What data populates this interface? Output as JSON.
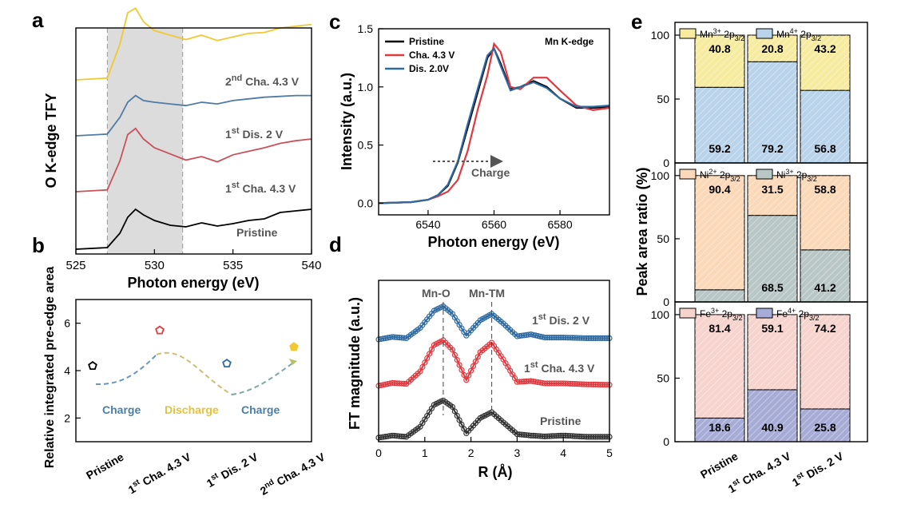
{
  "colors": {
    "pristine": "#000000",
    "cha": "#e0393f",
    "dis": "#2e6aa1",
    "cha2": "#f2c832",
    "blue_fill": "#b9d3ea",
    "yellow_fill": "#f7eba0",
    "orange_fill": "#fbd8b8",
    "gray_fill": "#b8c6c6",
    "pink_fill": "#f6d3cd",
    "purple_fill": "#a7acd6",
    "band": "#dcdcdc"
  },
  "panels": {
    "a": {
      "letter": "a",
      "ylabel": "O K-edge TFY",
      "xlabel": "Photon energy (eV)",
      "xticks": [
        "525",
        "530",
        "535",
        "540"
      ],
      "labels": {
        "cha2_pre": "2",
        "cha2_sup": "nd",
        "cha2_post": " Cha. 4.3 V",
        "dis_pre": "1",
        "dis_sup": "st",
        "dis_post": " Dis. 2 V",
        "cha_pre": "1",
        "cha_sup": "st",
        "cha_post": " Cha. 4.3 V",
        "pristine": "Pristine"
      }
    },
    "b": {
      "letter": "b",
      "ylabel": "Relative integrated pre-edge area",
      "yticks": [
        "2",
        "4",
        "6"
      ],
      "xlabels": [
        {
          "pre": "Pristine",
          "sup": "",
          "post": ""
        },
        {
          "pre": "1",
          "sup": "st",
          "post": " Cha. 4.3 V"
        },
        {
          "pre": "1",
          "sup": "st",
          "post": " Dis. 2 V"
        },
        {
          "pre": "2",
          "sup": "nd",
          "post": " Cha. 4.3 V"
        }
      ],
      "arrows": [
        "Charge",
        "Discharge",
        "Charge"
      ]
    },
    "c": {
      "letter": "c",
      "ylabel": "Intensity (a.u.)",
      "xlabel": "Photon energy (eV)",
      "yticks": [
        "0.0",
        "0.5",
        "1.0",
        "1.5"
      ],
      "xticks": [
        "6540",
        "6560",
        "6580"
      ],
      "legend": [
        "Pristine",
        "Cha. 4.3 V",
        "Dis. 2.0V"
      ],
      "annotation": "Mn K-edge",
      "arrow_label": "Charge"
    },
    "d": {
      "letter": "d",
      "ylabel": "FT magnitude (a.u.)",
      "xlabel": "R (Å)",
      "xticks": [
        "0",
        "1",
        "2",
        "3",
        "4",
        "5"
      ],
      "peak1": "Mn-O",
      "peak2": "Mn-TM",
      "labels": {
        "dis_pre": "1",
        "dis_sup": "st",
        "dis_post": " Dis. 2 V",
        "cha_pre": "1",
        "cha_sup": "st",
        "cha_post": " Cha. 4.3 V",
        "pristine": "Pristine"
      }
    },
    "e": {
      "letter": "e",
      "ylabel": "Peak area ratio (%)",
      "yticks": [
        "0",
        "50",
        "100"
      ],
      "xlabels": [
        {
          "pre": "Pristine",
          "sup": "",
          "post": ""
        },
        {
          "pre": "1",
          "sup": "st",
          "post": " Cha. 4.3 V"
        },
        {
          "pre": "1",
          "sup": "st",
          "post": " Dis. 2 V"
        }
      ],
      "legends": [
        [
          {
            "base": "Mn",
            "sup": "3+",
            "mid": " 2p",
            "sub": "3/2"
          },
          {
            "base": "Mn",
            "sup": "4+",
            "mid": " 2p",
            "sub": "3/2"
          }
        ],
        [
          {
            "base": "Ni",
            "sup": "2+",
            "mid": " 2p",
            "sub": "3/2"
          },
          {
            "base": "Ni",
            "sup": "3+",
            "mid": " 2p",
            "sub": "3/2"
          }
        ],
        [
          {
            "base": "Fe",
            "sup": "3+",
            "mid": " 2p",
            "sub": "3/2"
          },
          {
            "base": "Fe",
            "sup": "4+",
            "mid": " 2p",
            "sub": "3/2"
          }
        ]
      ]
    }
  },
  "chart_data": [
    {
      "panel": "a",
      "type": "line",
      "xlabel": "Photon energy (eV)",
      "ylabel": "O K-edge TFY",
      "xlim": [
        525,
        540
      ],
      "highlight_region": [
        527,
        531.8
      ],
      "series": [
        {
          "name": "Pristine",
          "x": [
            525,
            527,
            527.8,
            528.3,
            528.8,
            529.3,
            530,
            531,
            532,
            533,
            534,
            535,
            536,
            537,
            538,
            539,
            540
          ],
          "y": [
            0.0,
            0.02,
            0.2,
            0.4,
            0.5,
            0.43,
            0.36,
            0.3,
            0.28,
            0.33,
            0.29,
            0.32,
            0.36,
            0.38,
            0.46,
            0.48,
            0.5
          ]
        },
        {
          "name": "1st Cha. 4.3 V",
          "x": [
            525,
            527,
            527.8,
            528.3,
            528.8,
            529.3,
            530,
            531,
            532,
            533,
            534,
            535,
            536,
            537,
            538,
            539,
            540
          ],
          "y": [
            0.0,
            0.02,
            0.35,
            0.65,
            0.72,
            0.6,
            0.5,
            0.43,
            0.36,
            0.4,
            0.34,
            0.42,
            0.46,
            0.5,
            0.55,
            0.58,
            0.6
          ]
        },
        {
          "name": "1st Dis. 2 V",
          "x": [
            525,
            527,
            527.8,
            528.3,
            528.8,
            529.3,
            530,
            531,
            532,
            533,
            534,
            535,
            536,
            537,
            538,
            539,
            540
          ],
          "y": [
            0.0,
            0.02,
            0.22,
            0.4,
            0.48,
            0.42,
            0.4,
            0.38,
            0.36,
            0.4,
            0.38,
            0.42,
            0.44,
            0.46,
            0.47,
            0.48,
            0.48
          ]
        },
        {
          "name": "2nd Cha. 4.3 V",
          "x": [
            525,
            527,
            527.8,
            528.3,
            528.8,
            529.3,
            530,
            531,
            532,
            533,
            534,
            535,
            536,
            537,
            538,
            539,
            540
          ],
          "y": [
            0.0,
            0.02,
            0.4,
            0.75,
            0.8,
            0.65,
            0.55,
            0.5,
            0.45,
            0.5,
            0.44,
            0.48,
            0.52,
            0.53,
            0.58,
            0.6,
            0.62
          ]
        }
      ]
    },
    {
      "panel": "b",
      "type": "scatter",
      "ylabel": "Relative integrated pre-edge area",
      "ylim": [
        1,
        7
      ],
      "categories": [
        "Pristine",
        "1st Cha. 4.3 V",
        "1st Dis. 2 V",
        "2nd Cha. 4.3 V"
      ],
      "values": [
        4.2,
        5.7,
        4.3,
        5.0
      ]
    },
    {
      "panel": "c",
      "type": "line",
      "xlabel": "Photon energy (eV)",
      "ylabel": "Intensity (a.u.)",
      "xlim": [
        6525,
        6595
      ],
      "ylim": [
        -0.1,
        1.5
      ],
      "series": [
        {
          "name": "Pristine",
          "x": [
            6525,
            6535,
            6540,
            6543,
            6546,
            6549,
            6552,
            6555,
            6558,
            6560,
            6562,
            6565,
            6568,
            6572,
            6576,
            6580,
            6585,
            6590,
            6595
          ],
          "y": [
            0.0,
            0.01,
            0.03,
            0.07,
            0.15,
            0.35,
            0.65,
            0.95,
            1.25,
            1.33,
            1.2,
            0.98,
            1.0,
            1.05,
            1.0,
            0.9,
            0.82,
            0.82,
            0.83
          ]
        },
        {
          "name": "Cha. 4.3 V",
          "x": [
            6525,
            6535,
            6540,
            6543,
            6546,
            6549,
            6552,
            6555,
            6558,
            6560,
            6562,
            6565,
            6568,
            6572,
            6576,
            6580,
            6585,
            6590,
            6595
          ],
          "y": [
            0.0,
            0.01,
            0.03,
            0.06,
            0.1,
            0.2,
            0.45,
            0.8,
            1.1,
            1.37,
            1.3,
            1.0,
            0.98,
            1.08,
            1.08,
            0.97,
            0.84,
            0.8,
            0.82
          ]
        },
        {
          "name": "Dis. 2.0V",
          "x": [
            6525,
            6535,
            6540,
            6543,
            6546,
            6549,
            6552,
            6555,
            6558,
            6560,
            6562,
            6565,
            6568,
            6572,
            6576,
            6580,
            6585,
            6590,
            6595
          ],
          "y": [
            0.0,
            0.01,
            0.03,
            0.07,
            0.16,
            0.36,
            0.68,
            0.98,
            1.27,
            1.33,
            1.18,
            0.97,
            1.0,
            1.04,
            0.99,
            0.9,
            0.83,
            0.83,
            0.84
          ]
        }
      ]
    },
    {
      "panel": "d",
      "type": "line",
      "xlabel": "R (Å)",
      "ylabel": "FT magnitude (a.u.)",
      "xlim": [
        0,
        5
      ],
      "series": [
        {
          "name": "Pristine",
          "x": [
            0,
            0.3,
            0.6,
            0.9,
            1.2,
            1.4,
            1.6,
            1.9,
            2.2,
            2.45,
            2.7,
            3.0,
            3.3,
            3.6,
            4.0,
            4.5,
            5.0
          ],
          "y": [
            0.0,
            0.05,
            0.02,
            0.25,
            0.75,
            0.85,
            0.7,
            0.1,
            0.45,
            0.58,
            0.35,
            0.08,
            0.05,
            0.03,
            0.05,
            0.02,
            0.02
          ]
        },
        {
          "name": "1st Cha. 4.3 V",
          "x": [
            0,
            0.3,
            0.6,
            0.9,
            1.2,
            1.4,
            1.6,
            1.9,
            2.2,
            2.45,
            2.7,
            3.0,
            3.3,
            3.6,
            4.0,
            4.5,
            5.0
          ],
          "y": [
            0.0,
            0.06,
            0.04,
            0.3,
            0.85,
            0.95,
            0.75,
            0.12,
            0.7,
            0.9,
            0.55,
            0.08,
            0.1,
            0.05,
            0.05,
            0.03,
            0.02
          ]
        },
        {
          "name": "1st Dis. 2 V",
          "x": [
            0,
            0.3,
            0.6,
            0.9,
            1.2,
            1.4,
            1.6,
            1.9,
            2.2,
            2.45,
            2.7,
            3.0,
            3.3,
            3.6,
            4.0,
            4.5,
            5.0
          ],
          "y": [
            0.0,
            0.04,
            0.02,
            0.18,
            0.45,
            0.52,
            0.4,
            0.06,
            0.3,
            0.4,
            0.25,
            0.05,
            0.08,
            0.03,
            0.03,
            0.02,
            0.02
          ]
        }
      ]
    },
    {
      "panel": "e-Mn",
      "type": "bar",
      "stacked": true,
      "ylim": [
        0,
        110
      ],
      "categories": [
        "Pristine",
        "1st Cha. 4.3 V",
        "1st Dis. 2 V"
      ],
      "series": [
        {
          "name": "Mn4+ 2p3/2",
          "values": [
            59.2,
            79.2,
            56.8
          ]
        },
        {
          "name": "Mn3+ 2p3/2",
          "values": [
            40.8,
            20.8,
            43.2
          ]
        }
      ]
    },
    {
      "panel": "e-Ni",
      "type": "bar",
      "stacked": true,
      "ylim": [
        0,
        110
      ],
      "categories": [
        "Pristine",
        "1st Cha. 4.3 V",
        "1st Dis. 2 V"
      ],
      "series": [
        {
          "name": "Ni3+ 2p3/2",
          "values": [
            9.6,
            68.5,
            41.2
          ]
        },
        {
          "name": "Ni2+ 2p3/2",
          "values": [
            90.4,
            31.5,
            58.8
          ]
        }
      ]
    },
    {
      "panel": "e-Fe",
      "type": "bar",
      "stacked": true,
      "ylim": [
        0,
        110
      ],
      "categories": [
        "Pristine",
        "1st Cha. 4.3 V",
        "1st Dis. 2 V"
      ],
      "series": [
        {
          "name": "Fe4+ 2p3/2",
          "values": [
            18.6,
            40.9,
            25.8
          ]
        },
        {
          "name": "Fe3+ 2p3/2",
          "values": [
            81.4,
            59.1,
            74.2
          ]
        }
      ]
    }
  ]
}
